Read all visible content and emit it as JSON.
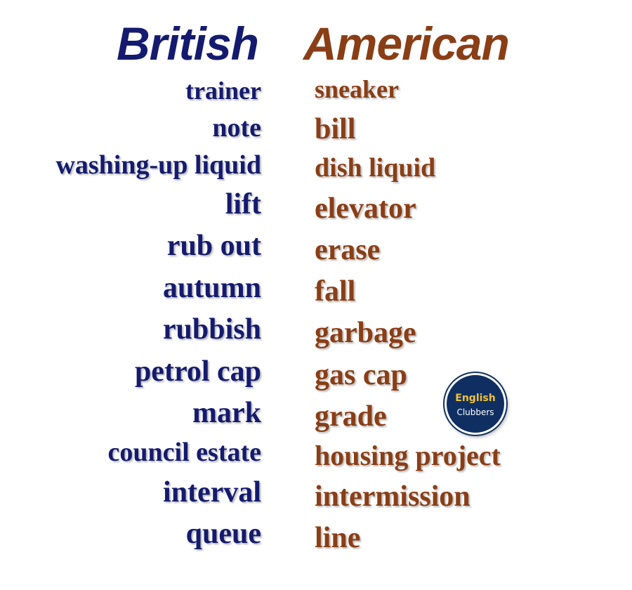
{
  "headings": {
    "british": "British",
    "american": "American"
  },
  "british": [
    "trainer",
    "note",
    "washing-up liquid",
    "lift",
    "rub out",
    "autumn",
    "rubbish",
    "petrol cap",
    "mark",
    "council estate",
    "interval",
    "queue"
  ],
  "american": [
    "sneaker",
    "bill",
    "dish liquid",
    "elevator",
    "erase",
    "fall",
    "garbage",
    "gas cap",
    "grade",
    "housing project",
    "intermission",
    "line"
  ],
  "logo": {
    "line1": "English",
    "line2": "Clubbers"
  },
  "colors": {
    "british": "#141b6e",
    "american": "#8a3e15",
    "logo_bg": "#0f2f63",
    "logo_accent": "#f2c233"
  }
}
